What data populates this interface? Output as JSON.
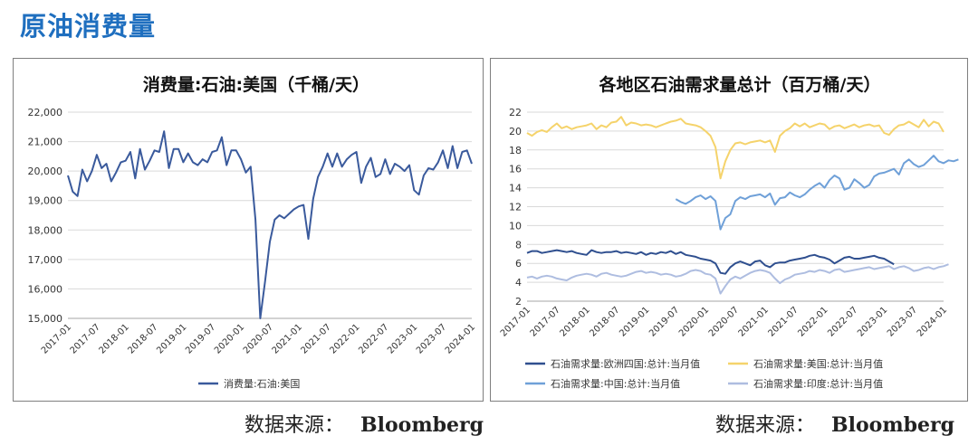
{
  "header": {
    "title": "原油消费量"
  },
  "sources": [
    {
      "label": "数据来源：",
      "value": "Bloomberg"
    },
    {
      "label": "数据来源：",
      "value": "Bloomberg"
    }
  ],
  "chart_data": [
    {
      "type": "line",
      "title": "消费量:石油:美国（千桶/天）",
      "xlabel": "",
      "ylabel": "",
      "ylim": [
        15000,
        22000
      ],
      "yticks": [
        "15,000",
        "16,000",
        "17,000",
        "18,000",
        "19,000",
        "20,000",
        "21,000",
        "22,000"
      ],
      "yticks_values": [
        15000,
        16000,
        17000,
        18000,
        19000,
        20000,
        21000,
        22000
      ],
      "xticks": [
        "2017-01",
        "2017-07",
        "2018-01",
        "2018-07",
        "2019-01",
        "2019-07",
        "2020-01",
        "2020-07",
        "2021-01",
        "2021-07",
        "2022-01",
        "2022-07",
        "2023-01",
        "2023-07",
        "2024-01"
      ],
      "grid": "horizontal",
      "legend": "bottom",
      "series": [
        {
          "name": "消费量:石油:美国",
          "color": "#3a5a9c",
          "start": "2017-01",
          "values": [
            19850,
            19300,
            19150,
            20050,
            19650,
            20000,
            20550,
            20100,
            20250,
            19650,
            19950,
            20300,
            20350,
            20650,
            19750,
            20750,
            20050,
            20350,
            20700,
            20650,
            21350,
            20100,
            20750,
            20750,
            20300,
            20600,
            20300,
            20200,
            20400,
            20300,
            20650,
            20700,
            21150,
            20200,
            20700,
            20700,
            20400,
            19950,
            20150,
            18350,
            15000,
            16250,
            17600,
            18350,
            18500,
            18400,
            18550,
            18700,
            18800,
            18850,
            17700,
            19050,
            19800,
            20150,
            20600,
            20150,
            20600,
            20150,
            20400,
            20550,
            20650,
            19600,
            20150,
            20450,
            19800,
            19900,
            20400,
            19900,
            20250,
            20150,
            20000,
            20200,
            19350,
            19200,
            19850,
            20100,
            20050,
            20300,
            20700,
            20100,
            20850,
            20100,
            20650,
            20700,
            20250
          ]
        }
      ]
    },
    {
      "type": "line",
      "title": "各地区石油需求量总计（百万桶/天）",
      "xlabel": "",
      "ylabel": "",
      "ylim": [
        2,
        22
      ],
      "yticks": [
        "2",
        "4",
        "6",
        "8",
        "10",
        "12",
        "14",
        "16",
        "18",
        "20",
        "22"
      ],
      "yticks_values": [
        2,
        4,
        6,
        8,
        10,
        12,
        14,
        16,
        18,
        20,
        22
      ],
      "xticks": [
        "2017-01",
        "2017-07",
        "2018-01",
        "2018-07",
        "2019-01",
        "2019-07",
        "2020-01",
        "2020-07",
        "2021-01",
        "2021-07",
        "2022-01",
        "2022-07",
        "2023-01",
        "2023-07",
        "2024-01"
      ],
      "grid": "horizontal",
      "legend": "bottom",
      "series": [
        {
          "name": "石油需求量:欧洲四国:总计:当月值",
          "color": "#2f4f8f",
          "start": "2017-01",
          "values": [
            7.1,
            7.3,
            7.3,
            7.1,
            7.2,
            7.3,
            7.4,
            7.3,
            7.2,
            7.3,
            7.1,
            7.0,
            6.9,
            7.4,
            7.2,
            7.1,
            7.2,
            7.2,
            7.3,
            7.1,
            7.2,
            7.1,
            7.0,
            7.2,
            6.9,
            7.1,
            7.0,
            7.2,
            7.1,
            7.3,
            7.0,
            7.2,
            6.9,
            6.8,
            6.7,
            6.5,
            6.4,
            6.3,
            6.0,
            5.0,
            4.9,
            5.6,
            6.0,
            6.2,
            6.0,
            5.8,
            6.2,
            6.3,
            5.8,
            5.6,
            6.0,
            6.1,
            6.1,
            6.3,
            6.4,
            6.5,
            6.6,
            6.8,
            6.9,
            6.7,
            6.6,
            6.4,
            6.0,
            6.3,
            6.6,
            6.7,
            6.5,
            6.5,
            6.6,
            6.7,
            6.8,
            6.6,
            6.5,
            6.2,
            5.9
          ]
        },
        {
          "name": "石油需求量:美国:总计:当月值",
          "color": "#f5d36b",
          "start": "2017-01",
          "values": [
            19.8,
            19.5,
            19.9,
            20.1,
            19.9,
            20.4,
            20.8,
            20.3,
            20.5,
            20.2,
            20.4,
            20.5,
            20.6,
            20.8,
            20.2,
            20.6,
            20.4,
            20.9,
            21.0,
            21.5,
            20.6,
            20.9,
            20.8,
            20.6,
            20.7,
            20.6,
            20.4,
            20.6,
            20.8,
            21.0,
            21.1,
            21.3,
            20.8,
            20.7,
            20.6,
            20.4,
            20.0,
            19.5,
            18.3,
            15.0,
            16.8,
            18.0,
            18.7,
            18.8,
            18.6,
            18.8,
            18.9,
            19.0,
            18.8,
            19.0,
            17.8,
            19.5,
            20.0,
            20.3,
            20.8,
            20.5,
            20.8,
            20.4,
            20.6,
            20.8,
            20.7,
            20.2,
            20.5,
            20.6,
            20.3,
            20.5,
            20.7,
            20.4,
            20.6,
            20.7,
            20.5,
            20.6,
            19.8,
            19.6,
            20.2,
            20.6,
            20.7,
            21.0,
            20.7,
            20.4,
            21.2,
            20.5,
            21.0,
            20.8,
            19.9
          ]
        },
        {
          "name": "石油需求量:中国:总计:当月值",
          "color": "#6fa0d8",
          "start": "2019-07",
          "values": [
            12.8,
            12.5,
            12.3,
            12.6,
            13.0,
            13.2,
            12.8,
            13.1,
            12.6,
            9.6,
            10.8,
            11.2,
            12.6,
            13.0,
            12.8,
            13.1,
            13.2,
            13.3,
            13.0,
            13.4,
            12.2,
            12.9,
            13.0,
            13.5,
            13.2,
            13.0,
            13.3,
            13.8,
            14.2,
            14.5,
            14.0,
            14.8,
            15.3,
            15.0,
            13.8,
            14.0,
            14.9,
            14.5,
            14.0,
            14.3,
            15.2,
            15.5,
            15.6,
            15.8,
            16.0,
            15.4,
            16.6,
            17.0,
            16.5,
            16.2,
            16.4,
            16.9,
            17.4,
            16.8,
            16.6,
            16.9,
            16.8,
            17.0
          ]
        },
        {
          "name": "石油需求量:印度:总计:当月值",
          "color": "#aebde0",
          "start": "2017-01",
          "values": [
            4.5,
            4.6,
            4.4,
            4.6,
            4.7,
            4.6,
            4.4,
            4.3,
            4.2,
            4.5,
            4.7,
            4.8,
            4.9,
            4.8,
            4.6,
            4.9,
            5.0,
            4.8,
            4.7,
            4.6,
            4.7,
            4.9,
            5.1,
            5.2,
            5.0,
            5.1,
            5.0,
            4.8,
            4.9,
            4.8,
            4.6,
            4.7,
            4.9,
            5.2,
            5.3,
            5.2,
            4.9,
            4.8,
            4.4,
            2.8,
            3.6,
            4.3,
            4.6,
            4.4,
            4.7,
            5.0,
            5.2,
            5.3,
            5.2,
            5.0,
            4.4,
            3.9,
            4.3,
            4.5,
            4.8,
            4.9,
            5.0,
            5.2,
            5.1,
            5.3,
            5.2,
            5.0,
            5.3,
            5.4,
            5.1,
            5.2,
            5.3,
            5.4,
            5.5,
            5.6,
            5.4,
            5.5,
            5.6,
            5.7,
            5.4,
            5.6,
            5.7,
            5.5,
            5.2,
            5.3,
            5.5,
            5.6,
            5.4,
            5.6,
            5.7,
            5.9
          ]
        }
      ]
    }
  ]
}
